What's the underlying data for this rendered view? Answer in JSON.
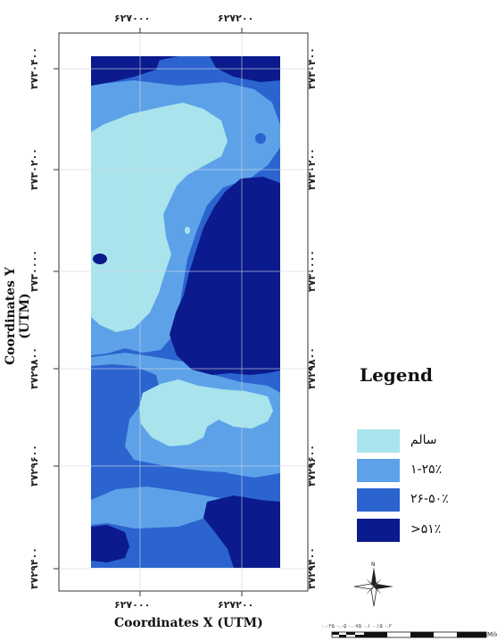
{
  "axes": {
    "x_title": "Coordinates X (UTM)",
    "y_title": "Coordinates Y (UTM)",
    "x_ticks": [
      "۶۲۷۰۰۰",
      "۶۲۷۲۰۰"
    ],
    "y_ticks": [
      "۳۷۳۰۴۰۰",
      "۳۷۳۰۲۰۰",
      "۳۷۳۰۰۰۰",
      "۳۷۲۹۸۰۰",
      "۳۷۲۹۶۰۰",
      "۳۷۲۹۴۰۰"
    ]
  },
  "legend": {
    "title": "Legend",
    "items": [
      {
        "label": "سالم",
        "color": "#a9e4ec"
      },
      {
        "label": "۱-۲۵٪",
        "color": "#5da2e8"
      },
      {
        "label": "۲۶-۵۰٪",
        "color": "#2b64cf"
      },
      {
        "label": ">۵۱٪",
        "color": "#0b1a8c"
      }
    ]
  },
  "north_arrow": {
    "label": "N",
    "icon": "compass-rose-icon"
  },
  "scale_bar": {
    "ticks": "۰.۰۲۵ ۰.۰۵   ۰.۰۷۵  ۰.۱   ۰.۱۵   ۰.۲",
    "unit": "Miles"
  },
  "map_colors": {
    "healthy": "#a9e4ec",
    "low": "#5da2e8",
    "mid": "#2b64cf",
    "high": "#0b1a8c",
    "gridline": "#cfd6e6",
    "frame": "#555555"
  }
}
